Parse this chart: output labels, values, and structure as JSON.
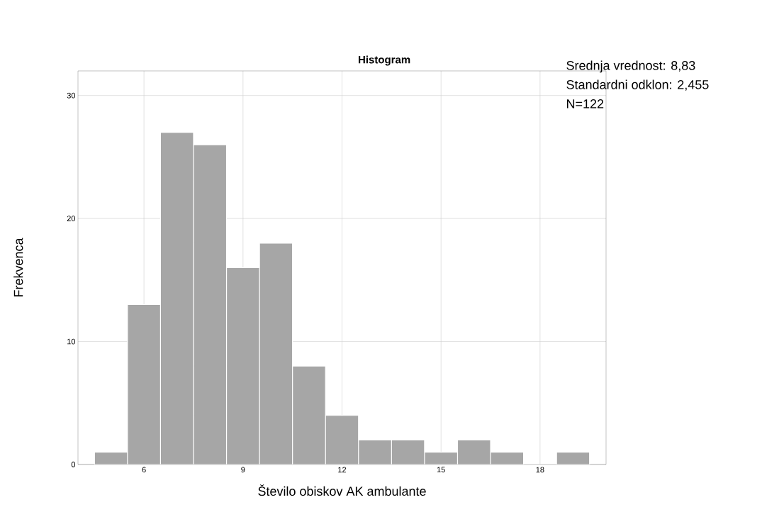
{
  "chart_data": {
    "type": "histogram",
    "title": "Histogram",
    "xlabel": "Število obiskov AK ambulante",
    "ylabel": "Frekvenca",
    "annotations": [
      "Srednja vrednost: 8,83",
      "Standardni odklon: 2,455",
      "N=122"
    ],
    "bins": [
      4.5,
      5.5,
      6.5,
      7.5,
      8.5,
      9.5,
      10.5,
      11.5,
      12.5,
      13.5,
      14.5,
      15.5,
      16.5,
      17.5,
      18.5,
      19.5
    ],
    "values": [
      1,
      13,
      27,
      26,
      16,
      18,
      8,
      4,
      2,
      2,
      1,
      2,
      1,
      0,
      1
    ],
    "color": "#a6a6a6",
    "xlim": [
      4,
      20
    ],
    "ylim": [
      0,
      32
    ],
    "xticks": [
      6,
      9,
      12,
      15,
      18
    ],
    "yticks": [
      0,
      10,
      20,
      30
    ],
    "grid": true
  }
}
